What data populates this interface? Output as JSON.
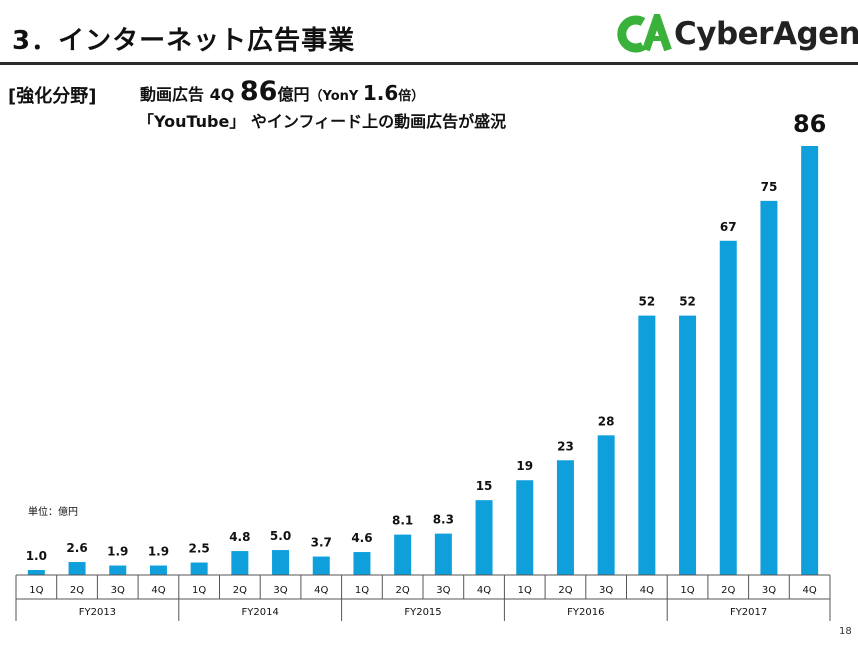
{
  "header": {
    "title": "3．インターネット広告事業",
    "logo_text": "CyberAgent",
    "logo_mark": "CA"
  },
  "headline": {
    "bracket_label": "[強化分野]",
    "line1_prefix": "動画広告 4Q ",
    "line1_value": "86",
    "line1_unit": "億円",
    "line1_paren_open": "（YonY ",
    "line1_growth": "1.6",
    "line1_growth_unit": "倍）",
    "line2": "「YouTube」 やインフィード上の動画広告が盛況"
  },
  "unit_note": "単位：億円",
  "page_number": "18",
  "chart_data": {
    "type": "bar",
    "title": "",
    "xlabel": "",
    "ylabel": "",
    "ylim": [
      0,
      86
    ],
    "grid": false,
    "legend": "none",
    "bar_color": "#0fa0dc",
    "categories": [
      "1Q",
      "2Q",
      "3Q",
      "4Q",
      "1Q",
      "2Q",
      "3Q",
      "4Q",
      "1Q",
      "2Q",
      "3Q",
      "4Q",
      "1Q",
      "2Q",
      "3Q",
      "4Q",
      "1Q",
      "2Q",
      "3Q",
      "4Q"
    ],
    "groups": [
      {
        "label": "FY2013",
        "size": 4
      },
      {
        "label": "FY2014",
        "size": 4
      },
      {
        "label": "FY2015",
        "size": 4
      },
      {
        "label": "FY2016",
        "size": 4
      },
      {
        "label": "FY2017",
        "size": 4
      }
    ],
    "values": [
      1.0,
      2.6,
      1.9,
      1.9,
      2.5,
      4.8,
      5.0,
      3.7,
      4.6,
      8.1,
      8.3,
      15,
      19,
      23,
      28,
      52,
      52,
      67,
      75,
      86
    ],
    "value_labels": [
      "1.0",
      "2.6",
      "1.9",
      "1.9",
      "2.5",
      "4.8",
      "5.0",
      "3.7",
      "4.6",
      "8.1",
      "8.3",
      "15",
      "19",
      "23",
      "28",
      "52",
      "52",
      "67",
      "75",
      "86"
    ]
  }
}
